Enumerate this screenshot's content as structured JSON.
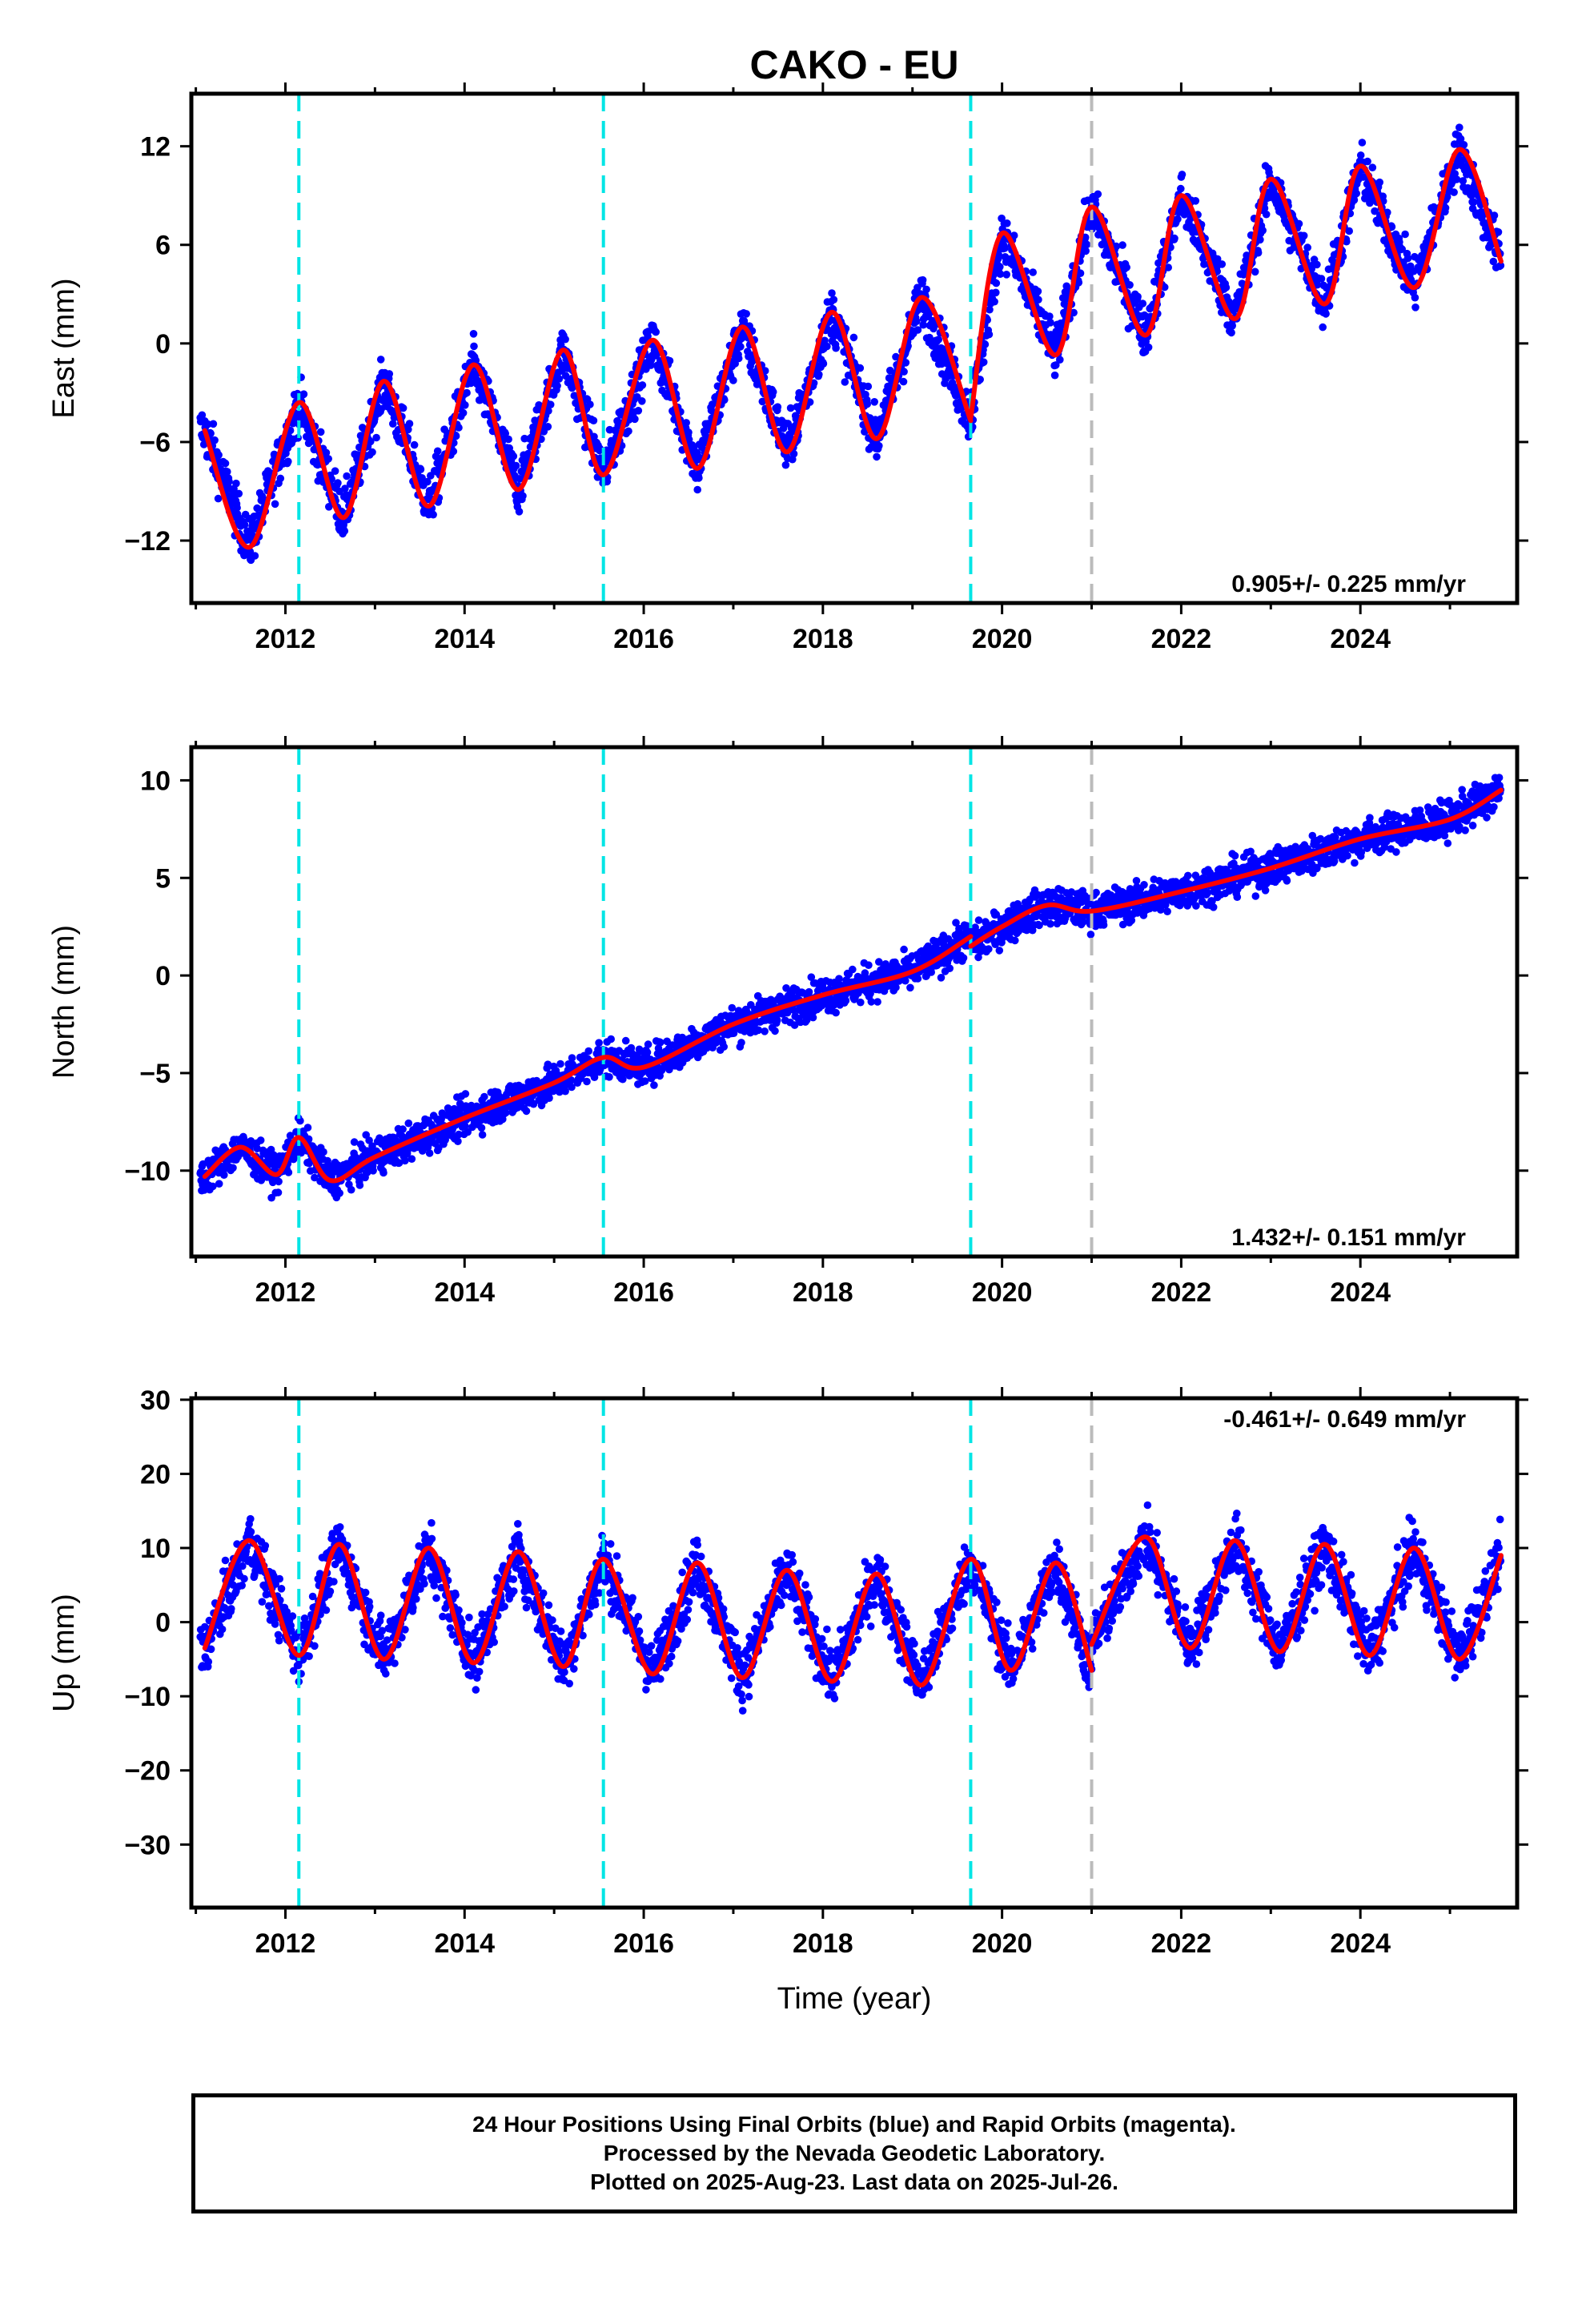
{
  "title": "CAKO - EU",
  "xlabel": "Time (year)",
  "footer": {
    "line1": "24 Hour Positions Using Final Orbits (blue) and Rapid Orbits (magenta).",
    "line2": "Processed by the Nevada Geodetic Laboratory.",
    "line3": "Plotted on 2025-Aug-23. Last data on 2025-Jul-26."
  },
  "colors": {
    "data": "#0000ff",
    "model": "#ff0000",
    "equipment_change": "#00e5e5",
    "other_event": "#bbbbbb",
    "frame": "#000000"
  },
  "chart_data": [
    {
      "type": "scatter",
      "component": "east",
      "ylabel": "East (mm)",
      "xlim": [
        2010.95,
        2025.75
      ],
      "ylim": [
        -15.8,
        15.2
      ],
      "xticks": [
        2012,
        2014,
        2016,
        2018,
        2020,
        2022,
        2024
      ],
      "yticks": [
        -12,
        -6,
        0,
        6,
        12
      ],
      "rate_label": "0.905+/- 0.225 mm/yr",
      "rate_position": "bottom-right",
      "data_start": 2011.05,
      "data_end": 2025.57,
      "events_cyan": [
        2012.15,
        2015.55,
        2019.65
      ],
      "events_gray": [
        2021.0
      ],
      "model_segments": [
        {
          "x": [
            2011.1,
            2011.6,
            2012.15,
            2012.65,
            2013.1,
            2013.6,
            2014.1,
            2014.6,
            2015.1,
            2015.55,
            2016.1,
            2016.6,
            2017.1,
            2017.6,
            2018.1,
            2018.6,
            2019.1,
            2019.65
          ],
          "y": [
            -5.3,
            -12.4,
            -3.6,
            -10.6,
            -2.3,
            -9.9,
            -1.3,
            -8.9,
            -0.4,
            -8.0,
            0.2,
            -7.6,
            1.0,
            -6.6,
            1.9,
            -5.8,
            2.8,
            -4.7
          ]
        },
        {
          "x": [
            2019.65,
            2020.0,
            2020.6,
            2021.0,
            2021.6,
            2022.0,
            2022.6,
            2023.0,
            2023.6,
            2024.0,
            2024.6,
            2025.1,
            2025.57
          ],
          "y": [
            -4.5,
            6.7,
            -0.7,
            8.3,
            0.5,
            9.0,
            1.5,
            10.0,
            2.4,
            10.8,
            3.4,
            11.8,
            5.0
          ]
        }
      ],
      "scatter_spread": 2.0
    },
    {
      "type": "scatter",
      "component": "north",
      "ylabel": "North (mm)",
      "xlim": [
        2010.95,
        2025.75
      ],
      "ylim": [
        -14.4,
        11.7
      ],
      "xticks": [
        2012,
        2014,
        2016,
        2018,
        2020,
        2022,
        2024
      ],
      "yticks": [
        -10,
        -5,
        0,
        5,
        10
      ],
      "rate_label": "1.432+/- 0.151 mm/yr",
      "rate_position": "bottom-right",
      "data_start": 2011.05,
      "data_end": 2025.57,
      "events_cyan": [
        2012.15,
        2015.55,
        2019.65
      ],
      "events_gray": [
        2021.0
      ],
      "model_segments": [
        {
          "x": [
            2011.1,
            2011.5,
            2011.9,
            2012.15,
            2012.5,
            2013.0,
            2014.0,
            2015.0,
            2015.55,
            2016.0,
            2017.0,
            2018.0,
            2019.0,
            2019.65
          ],
          "y": [
            -10.3,
            -8.8,
            -10.2,
            -8.3,
            -10.5,
            -9.3,
            -7.3,
            -5.5,
            -4.2,
            -4.7,
            -2.5,
            -1.0,
            0.2,
            2.0
          ]
        },
        {
          "x": [
            2019.65,
            2020.0,
            2020.5,
            2021.0,
            2022.0,
            2023.0,
            2024.0,
            2025.0,
            2025.57
          ],
          "y": [
            1.5,
            2.5,
            3.6,
            3.3,
            4.3,
            5.5,
            7.0,
            8.0,
            9.5
          ]
        }
      ],
      "scatter_spread": 1.2
    },
    {
      "type": "scatter",
      "component": "up",
      "ylabel": "Up (mm)",
      "xlim": [
        2010.95,
        2025.75
      ],
      "ylim": [
        -38.5,
        30.2
      ],
      "xticks": [
        2012,
        2014,
        2016,
        2018,
        2020,
        2022,
        2024
      ],
      "yticks": [
        -30,
        -20,
        -10,
        0,
        10,
        20,
        30
      ],
      "rate_label": "-0.461+/- 0.649 mm/yr",
      "rate_position": "top-right",
      "data_start": 2011.05,
      "data_end": 2025.57,
      "events_cyan": [
        2012.15,
        2015.55,
        2019.65
      ],
      "events_gray": [
        2021.0
      ],
      "model_segments": [
        {
          "x": [
            2011.1,
            2011.6,
            2012.15,
            2012.6,
            2013.1,
            2013.6,
            2014.1,
            2014.6,
            2015.1,
            2015.55,
            2016.1,
            2016.6,
            2017.1,
            2017.6,
            2018.1,
            2018.6,
            2019.1,
            2019.65,
            2020.1,
            2020.6,
            2021.0
          ],
          "y": [
            -3.5,
            11.0,
            -4.5,
            10.5,
            -5.0,
            10.0,
            -5.5,
            9.5,
            -6.0,
            8.5,
            -7.0,
            8.0,
            -7.5,
            7.0,
            -8.0,
            6.5,
            -8.5,
            8.5,
            -6.5,
            8.0,
            -6.5
          ]
        },
        {
          "x": [
            2021.0,
            2021.6,
            2022.1,
            2022.6,
            2023.1,
            2023.6,
            2024.1,
            2024.6,
            2025.1,
            2025.57
          ],
          "y": [
            -3.0,
            11.5,
            -3.5,
            11.0,
            -4.0,
            10.5,
            -4.5,
            10.0,
            -5.0,
            9.0
          ]
        }
      ],
      "scatter_spread": 5.0
    }
  ]
}
